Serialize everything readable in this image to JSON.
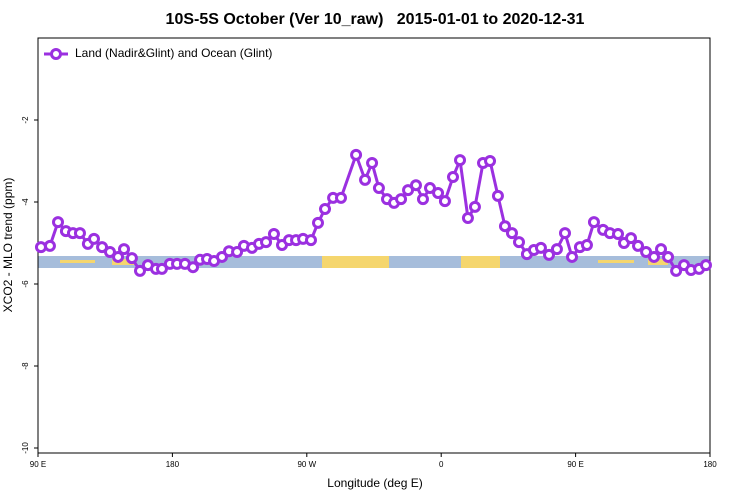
{
  "chart_data": {
    "type": "line",
    "title": "10S-5S October (Ver 10_raw)   2015-01-01 to 2020-12-31",
    "x_label": "Longitude (deg E)",
    "y_label": "XCO2 - MLO trend (ppm)",
    "xlim": [
      90,
      540
    ],
    "xticks": [
      {
        "value": 90,
        "label": "90 E"
      },
      {
        "value": 180,
        "label": "180"
      },
      {
        "value": 270,
        "label": "90 W"
      },
      {
        "value": 360,
        "label": "0"
      },
      {
        "value": 450,
        "label": "90 E"
      },
      {
        "value": 540,
        "label": "180"
      }
    ],
    "ylim": [
      -10,
      0
    ],
    "yticks": [
      -10,
      -8,
      -6,
      -4,
      -2
    ],
    "legend": "top-left",
    "series": [
      {
        "name": "Land (Nadir&Glint) and Ocean (Glint)",
        "color": "#9b30e0",
        "x": [
          92.0,
          98.0,
          103.4,
          108.7,
          113.4,
          118.1,
          123.4,
          127.5,
          132.9,
          138.2,
          143.6,
          147.6,
          152.9,
          158.3,
          163.6,
          169.0,
          173.0,
          178.3,
          183.1,
          188.4,
          193.8,
          198.5,
          203.2,
          207.9,
          213.2,
          217.9,
          223.3,
          227.9,
          233.3,
          238.0,
          242.7,
          248.0,
          253.4,
          258.1,
          262.8,
          267.5,
          272.8,
          277.5,
          282.2,
          287.6,
          292.9,
          303.0,
          309.0,
          313.7,
          318.3,
          323.7,
          328.4,
          333.1,
          337.8,
          343.1,
          347.8,
          352.5,
          357.9,
          362.5,
          367.9,
          372.6,
          377.9,
          382.6,
          388.0,
          392.7,
          398.0,
          402.7,
          407.4,
          412.1,
          417.4,
          422.1,
          426.8,
          432.2,
          437.5,
          442.9,
          447.6,
          452.9,
          457.6,
          462.3,
          468.4,
          473.0,
          478.4,
          482.4,
          487.1,
          491.8,
          497.2,
          502.5,
          507.2,
          511.9,
          517.3,
          522.6,
          527.3,
          532.7,
          537.3
        ],
        "values": [
          -5.1,
          -5.07,
          -4.49,
          -4.71,
          -4.76,
          -4.76,
          -5.02,
          -4.9,
          -5.1,
          -5.22,
          -5.34,
          -5.15,
          -5.37,
          -5.68,
          -5.54,
          -5.63,
          -5.63,
          -5.51,
          -5.51,
          -5.51,
          -5.59,
          -5.41,
          -5.39,
          -5.44,
          -5.34,
          -5.2,
          -5.22,
          -5.07,
          -5.12,
          -5.02,
          -4.98,
          -4.78,
          -5.05,
          -4.93,
          -4.93,
          -4.9,
          -4.93,
          -4.51,
          -4.17,
          -3.9,
          -3.9,
          -2.85,
          -3.46,
          -3.05,
          -3.66,
          -3.93,
          -4.02,
          -3.93,
          -3.71,
          -3.59,
          -3.93,
          -3.66,
          -3.78,
          -3.98,
          -3.39,
          -2.98,
          -4.39,
          -4.12,
          -3.05,
          -3.0,
          -3.85,
          -4.59,
          -4.76,
          -4.98,
          -5.27,
          -5.17,
          -5.12,
          -5.29,
          -5.15,
          -4.76,
          -5.34,
          -5.1,
          -5.05,
          -4.49,
          -4.68,
          -4.76,
          -4.78,
          -5.0,
          -4.88,
          -5.07,
          -5.22,
          -5.34,
          -5.15,
          -5.34,
          -5.68,
          -5.54,
          -5.66,
          -5.63,
          -5.54
        ]
      }
    ]
  }
}
